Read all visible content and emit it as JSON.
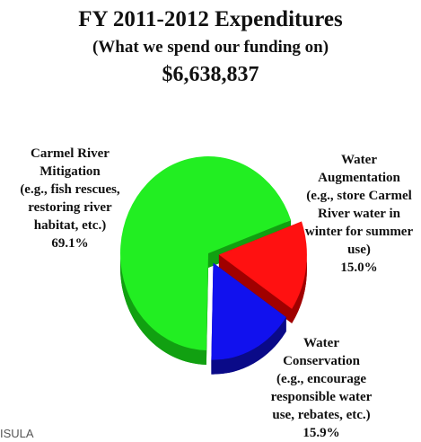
{
  "header": {
    "title": "FY 2011-2012 Expenditures",
    "subtitle": "(What we spend our funding on)",
    "total": "$6,638,837"
  },
  "chart_data": {
    "type": "pie",
    "title": "FY 2011-2012 Expenditures",
    "subtitle": "(What we spend our funding on)",
    "total": "$6,638,837",
    "slices": [
      {
        "label_lines": [
          "Carmel River",
          "Mitigation",
          "(e.g., fish rescues,",
          "restoring river",
          "habitat, etc.)"
        ],
        "value": 69.1,
        "value_label": "69.1%",
        "color": "#22ee22",
        "side_color": "#11a011"
      },
      {
        "label_lines": [
          "Water",
          "Augmentation",
          "(e.g., store Carmel",
          "River water in",
          "winter for summer",
          "use)"
        ],
        "value": 15.0,
        "value_label": "15.0%",
        "color": "#ff1111",
        "side_color": "#a00000"
      },
      {
        "label_lines": [
          "Water",
          "Conservation",
          "(e.g., encourage",
          "responsible water",
          "use, rebates, etc.)"
        ],
        "value": 15.9,
        "value_label": "15.9%",
        "color": "#1111ee",
        "side_color": "#0a0a88"
      }
    ],
    "style": "3d-exploded"
  },
  "footer": {
    "text": "ISULA"
  }
}
